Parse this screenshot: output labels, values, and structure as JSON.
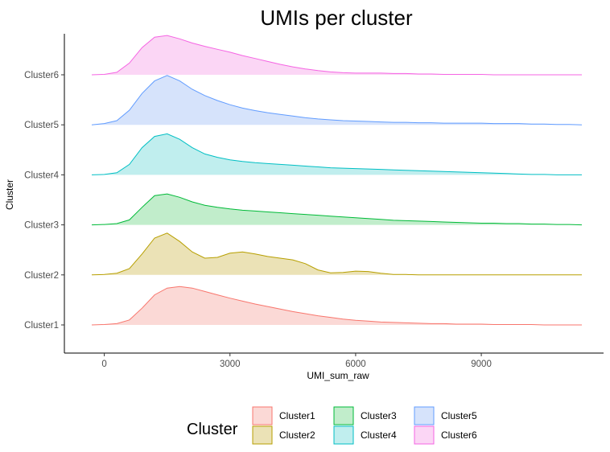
{
  "chart_data": {
    "type": "area",
    "subtype": "ridgeline-density",
    "title": "UMIs per cluster",
    "xlabel": "UMI_sum_raw",
    "ylabel": "Cluster",
    "xlim": [
      -300,
      11400
    ],
    "x_ticks": [
      0,
      3000,
      6000,
      9000
    ],
    "x_tick_labels": [
      "0",
      "3000",
      "6000",
      "9000"
    ],
    "grid": false,
    "legend": {
      "title": "Cluster",
      "position": "bottom",
      "entries": [
        "Cluster1",
        "Cluster2",
        "Cluster3",
        "Cluster4",
        "Cluster5",
        "Cluster6"
      ]
    },
    "categories": [
      "Cluster1",
      "Cluster2",
      "Cluster3",
      "Cluster4",
      "Cluster5",
      "Cluster6"
    ],
    "x": [
      -300,
      0,
      300,
      600,
      900,
      1200,
      1500,
      1800,
      2100,
      2400,
      2700,
      3000,
      3300,
      3600,
      3900,
      4200,
      4500,
      4800,
      5100,
      5400,
      5700,
      6000,
      6300,
      6600,
      6900,
      7200,
      7500,
      7800,
      8100,
      8400,
      8700,
      9000,
      9300,
      9600,
      9900,
      10200,
      10500,
      10800,
      11100,
      11400
    ],
    "series": [
      {
        "name": "Cluster1",
        "color": "#F8766D",
        "fill": "#FBD9D6",
        "values": [
          0,
          0.01,
          0.03,
          0.12,
          0.4,
          0.72,
          0.88,
          0.92,
          0.88,
          0.8,
          0.72,
          0.64,
          0.57,
          0.5,
          0.44,
          0.38,
          0.32,
          0.27,
          0.22,
          0.18,
          0.14,
          0.11,
          0.09,
          0.07,
          0.06,
          0.05,
          0.04,
          0.03,
          0.03,
          0.02,
          0.02,
          0.02,
          0.01,
          0.01,
          0.01,
          0.01,
          0,
          0,
          0,
          0
        ]
      },
      {
        "name": "Cluster2",
        "color": "#B79F00",
        "fill": "#EBE2B6",
        "values": [
          0,
          0.01,
          0.04,
          0.15,
          0.5,
          0.88,
          1.0,
          0.8,
          0.55,
          0.4,
          0.42,
          0.52,
          0.55,
          0.5,
          0.44,
          0.4,
          0.36,
          0.27,
          0.12,
          0.05,
          0.06,
          0.09,
          0.08,
          0.04,
          0.01,
          0.01,
          0,
          0,
          0,
          0,
          0,
          0,
          0,
          0,
          0,
          0,
          0,
          0,
          0,
          0
        ]
      },
      {
        "name": "Cluster3",
        "color": "#00BA38",
        "fill": "#C1EDCB",
        "values": [
          0,
          0.01,
          0.03,
          0.12,
          0.42,
          0.7,
          0.74,
          0.66,
          0.55,
          0.47,
          0.42,
          0.38,
          0.35,
          0.33,
          0.31,
          0.29,
          0.27,
          0.25,
          0.23,
          0.21,
          0.19,
          0.17,
          0.15,
          0.13,
          0.11,
          0.1,
          0.09,
          0.08,
          0.07,
          0.06,
          0.05,
          0.04,
          0.04,
          0.03,
          0.03,
          0.02,
          0.02,
          0.01,
          0.01,
          0
        ]
      },
      {
        "name": "Cluster4",
        "color": "#00BFC4",
        "fill": "#C0EEEE",
        "values": [
          0,
          0.01,
          0.05,
          0.25,
          0.65,
          0.92,
          0.98,
          0.85,
          0.65,
          0.5,
          0.42,
          0.36,
          0.32,
          0.29,
          0.27,
          0.25,
          0.23,
          0.21,
          0.19,
          0.17,
          0.16,
          0.15,
          0.14,
          0.13,
          0.12,
          0.11,
          0.1,
          0.09,
          0.08,
          0.07,
          0.06,
          0.05,
          0.04,
          0.03,
          0.02,
          0.01,
          0.01,
          0,
          0,
          0
        ]
      },
      {
        "name": "Cluster5",
        "color": "#619CFF",
        "fill": "#D6E3FB",
        "values": [
          0,
          0.03,
          0.1,
          0.35,
          0.75,
          1.05,
          1.18,
          1.05,
          0.85,
          0.7,
          0.58,
          0.48,
          0.4,
          0.34,
          0.29,
          0.25,
          0.21,
          0.17,
          0.14,
          0.12,
          0.1,
          0.09,
          0.08,
          0.07,
          0.06,
          0.06,
          0.05,
          0.05,
          0.04,
          0.04,
          0.04,
          0.04,
          0.03,
          0.03,
          0.03,
          0.02,
          0.02,
          0.01,
          0.01,
          0
        ]
      },
      {
        "name": "Cluster6",
        "color": "#F564E3",
        "fill": "#FBD6F5",
        "values": [
          0,
          0.01,
          0.06,
          0.28,
          0.65,
          0.9,
          0.94,
          0.86,
          0.76,
          0.68,
          0.61,
          0.54,
          0.46,
          0.39,
          0.32,
          0.25,
          0.19,
          0.14,
          0.1,
          0.07,
          0.05,
          0.04,
          0.04,
          0.04,
          0.03,
          0.03,
          0.02,
          0.02,
          0.01,
          0.01,
          0.01,
          0.01,
          0,
          0,
          0,
          0,
          0,
          0,
          0,
          0
        ]
      }
    ]
  }
}
